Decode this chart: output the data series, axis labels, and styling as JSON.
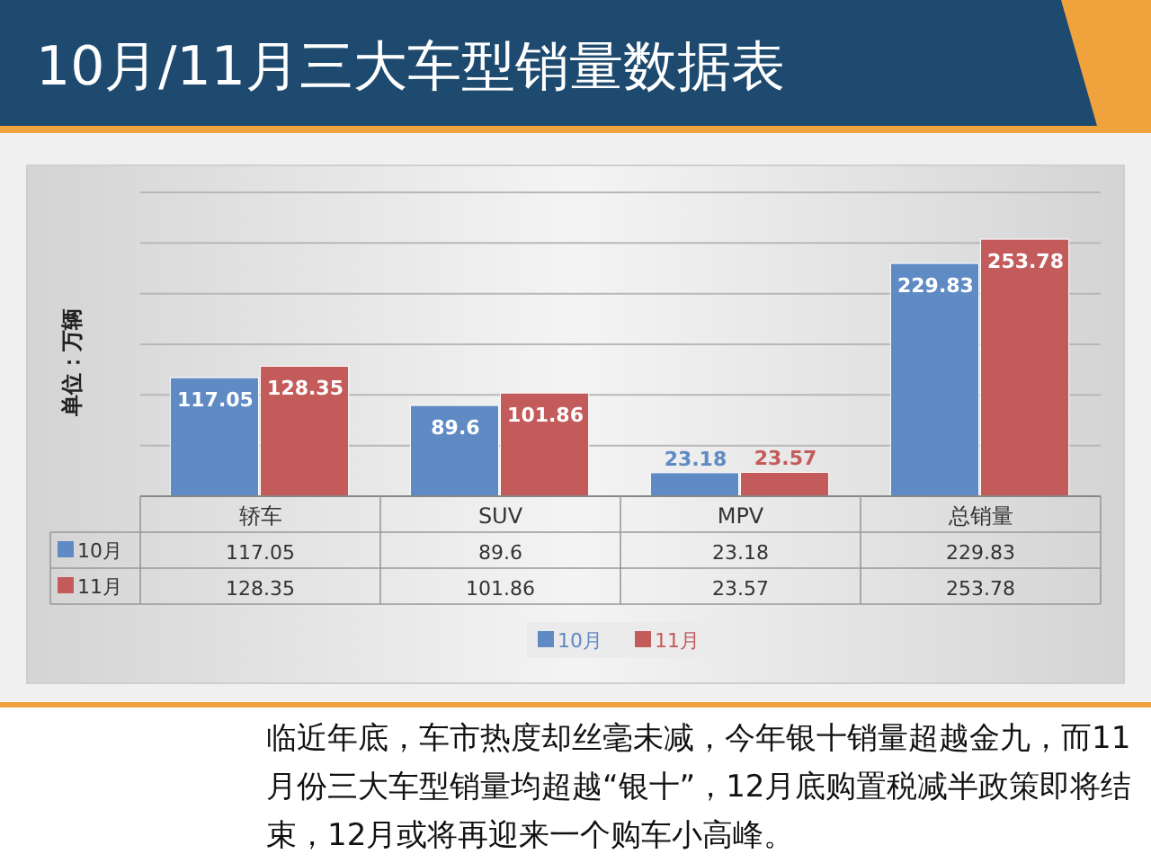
{
  "chart_data": [
    {
      "type": "bar",
      "title": "10月/11月三大车型销量数据表",
      "ylabel": "单位：万辆",
      "categories": [
        "轿车",
        "SUV",
        "MPV",
        "总销量"
      ],
      "series": [
        {
          "name": "10月",
          "color": "#5f8ac4",
          "values": [
            117.05,
            89.6,
            23.18,
            229.83
          ],
          "value_labels": [
            "117.05",
            "89.6",
            "23.18",
            "229.83"
          ]
        },
        {
          "name": "11月",
          "color": "#c45b5b",
          "values": [
            128.35,
            101.86,
            23.57,
            253.78
          ],
          "value_labels": [
            "128.35",
            "101.86",
            "23.57",
            "253.78"
          ]
        }
      ],
      "ylim": [
        0,
        300
      ],
      "yticks": [
        {
          "value": 0,
          "label": null
        },
        {
          "value": 50,
          "label": null
        },
        {
          "value": 100,
          "label": null
        },
        {
          "value": 150,
          "label": null
        },
        {
          "value": 200,
          "label": null
        },
        {
          "value": 250,
          "label": null
        },
        {
          "value": 300,
          "label": null
        }
      ],
      "grid": "y",
      "tick_labels": "x",
      "legend": "bottom",
      "annotations": [
        "临近年底，车市热度却丝毫未减，今年银十销量超越金九，而11月份三大车型销量均超越“银十”，12月底购置税减半政策即将结束，12月或将再迎来一个购车小高峰。"
      ]
    },
    {
      "type": "other",
      "annotations": [
        "10月",
        "117.05",
        "89.6",
        "23.18",
        "229.83",
        "11月",
        "128.35",
        "101.86",
        "23.57",
        "253.78"
      ]
    }
  ]
}
